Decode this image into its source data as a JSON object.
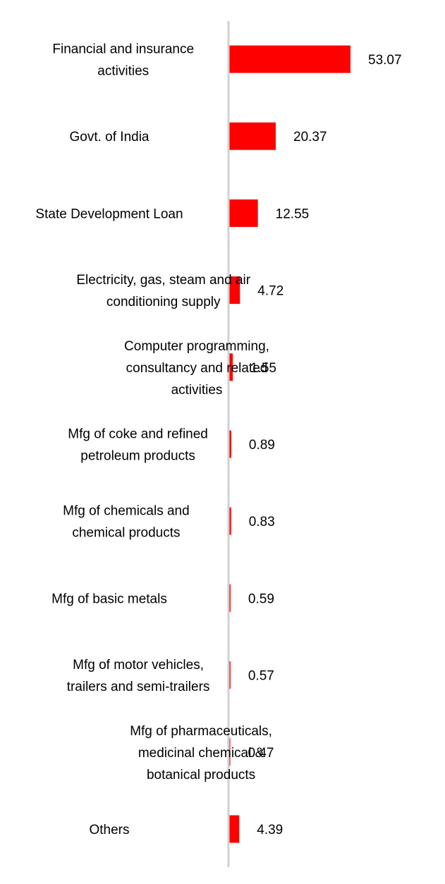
{
  "chart_data": {
    "type": "bar",
    "orientation": "horizontal",
    "categories": [
      "Financial and insurance activities",
      "Govt. of India",
      "State Development Loan",
      "Electricity, gas, steam and air conditioning supply",
      "Computer programming, consultancy and related activities",
      "Mfg of coke and refined petroleum products",
      "Mfg of chemicals and chemical products",
      "Mfg of basic metals",
      "Mfg of motor vehicles, trailers and semi-trailers",
      "Mfg of pharmaceuticals, medicinal chemical & botanical products",
      "Others"
    ],
    "label_lines": [
      [
        "Financial and insurance",
        "activities"
      ],
      [
        "Govt. of India"
      ],
      [
        "State Development Loan"
      ],
      [
        "Electricity, gas, steam and air",
        "conditioning supply"
      ],
      [
        "Computer programming,",
        "consultancy and related",
        "activities"
      ],
      [
        "Mfg of coke and refined",
        "petroleum products"
      ],
      [
        "Mfg of chemicals and",
        "chemical products"
      ],
      [
        "Mfg of basic metals"
      ],
      [
        "Mfg of motor vehicles,",
        "trailers and semi-trailers"
      ],
      [
        "Mfg of pharmaceuticals,",
        "medicinal chemical &",
        "botanical products"
      ],
      [
        "Others"
      ]
    ],
    "values": [
      53.07,
      20.37,
      12.55,
      4.72,
      1.55,
      0.89,
      0.83,
      0.59,
      0.57,
      0.47,
      4.39
    ],
    "value_labels": [
      "53.07",
      "20.37",
      "12.55",
      "4.72",
      "1.55",
      "0.89",
      "0.83",
      "0.59",
      "0.57",
      "0.47",
      "4.39"
    ],
    "bar_color": "#ff0000",
    "axis_color": "#d0d0d0",
    "xlim": [
      0,
      53.07
    ],
    "grid": false,
    "legend": "none"
  }
}
